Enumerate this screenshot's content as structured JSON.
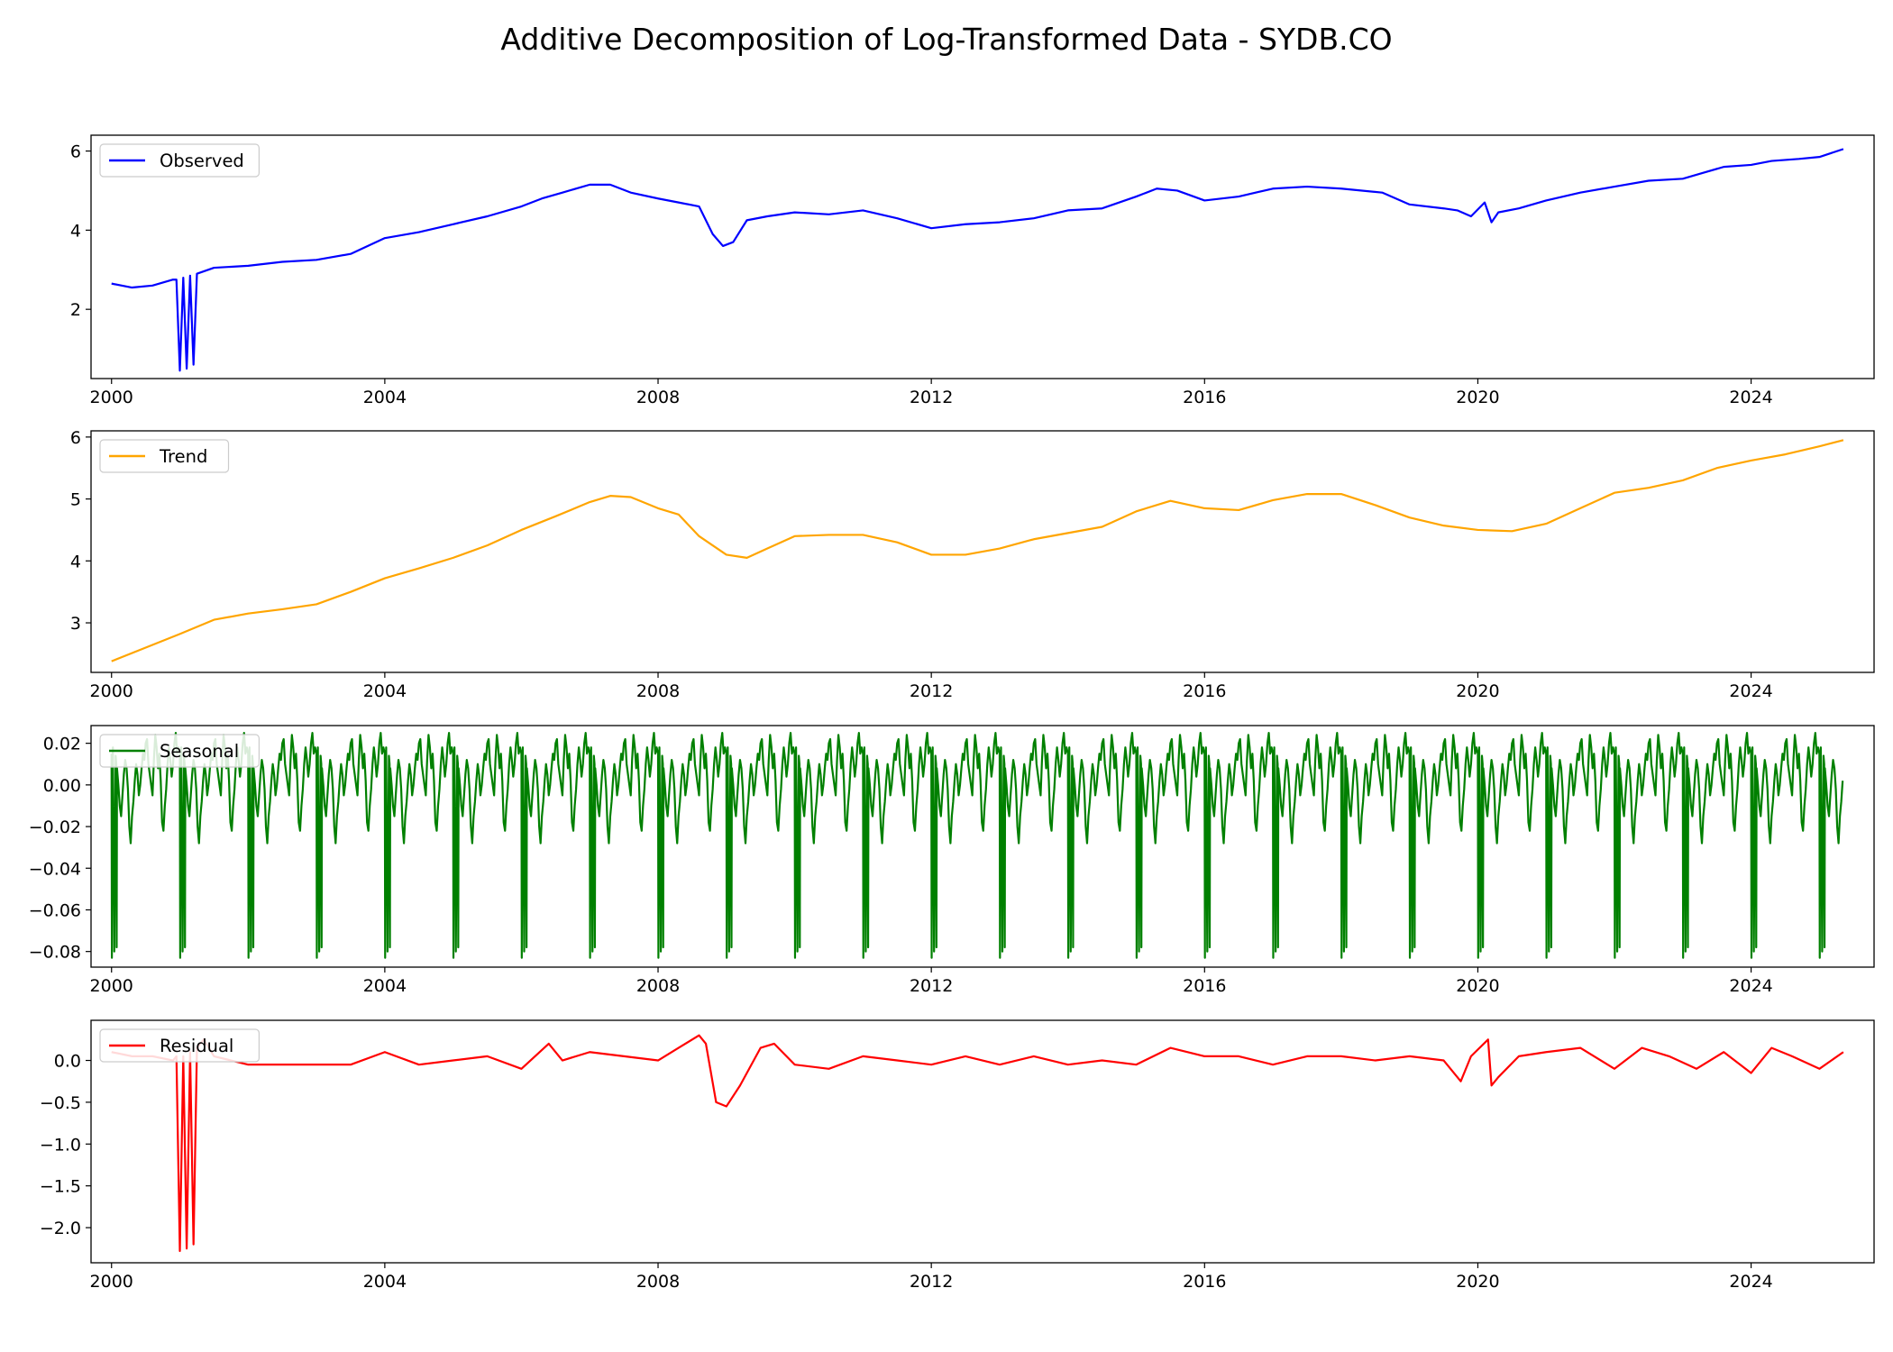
{
  "figure": {
    "title": "Additive Decomposition of Log-Transformed Data - SYDB.CO"
  },
  "chart_data": [
    {
      "type": "line",
      "legend": "Observed",
      "legend_position": "upper-left",
      "color": "#0000ff",
      "xlim": [
        1999.7,
        2025.8
      ],
      "ylim": [
        0.25,
        6.4
      ],
      "x_ticks": [
        2000,
        2004,
        2008,
        2012,
        2016,
        2020,
        2024
      ],
      "x_tick_labels": [
        "2000",
        "2004",
        "2008",
        "2012",
        "2016",
        "2020",
        "2024"
      ],
      "y_ticks": [
        2,
        4,
        6
      ],
      "y_tick_labels": [
        "2",
        "4",
        "6"
      ],
      "series": [
        {
          "name": "Observed",
          "x": [
            2000.0,
            2000.3,
            2000.6,
            2000.9,
            2000.95,
            2001.0,
            2001.05,
            2001.1,
            2001.15,
            2001.2,
            2001.25,
            2001.5,
            2002.0,
            2002.5,
            2003.0,
            2003.5,
            2004.0,
            2004.5,
            2005.0,
            2005.5,
            2006.0,
            2006.3,
            2006.6,
            2007.0,
            2007.3,
            2007.6,
            2008.0,
            2008.3,
            2008.6,
            2008.8,
            2008.95,
            2009.1,
            2009.3,
            2009.6,
            2010.0,
            2010.5,
            2011.0,
            2011.5,
            2012.0,
            2012.5,
            2013.0,
            2013.5,
            2014.0,
            2014.5,
            2015.0,
            2015.3,
            2015.6,
            2016.0,
            2016.5,
            2017.0,
            2017.5,
            2018.0,
            2018.6,
            2019.0,
            2019.5,
            2019.7,
            2019.9,
            2020.1,
            2020.2,
            2020.3,
            2020.6,
            2021.0,
            2021.5,
            2022.0,
            2022.5,
            2023.0,
            2023.3,
            2023.6,
            2024.0,
            2024.3,
            2024.7,
            2025.0,
            2025.35
          ],
          "values": [
            2.65,
            2.55,
            2.6,
            2.75,
            2.75,
            0.45,
            2.8,
            0.5,
            2.85,
            0.6,
            2.9,
            3.05,
            3.1,
            3.2,
            3.25,
            3.4,
            3.8,
            3.95,
            4.15,
            4.35,
            4.6,
            4.8,
            4.95,
            5.15,
            5.15,
            4.95,
            4.8,
            4.7,
            4.6,
            3.9,
            3.6,
            3.7,
            4.25,
            4.35,
            4.45,
            4.4,
            4.5,
            4.3,
            4.05,
            4.15,
            4.2,
            4.3,
            4.5,
            4.55,
            4.85,
            5.05,
            5.0,
            4.75,
            4.85,
            5.05,
            5.1,
            5.05,
            4.95,
            4.65,
            4.55,
            4.5,
            4.35,
            4.7,
            4.2,
            4.45,
            4.55,
            4.75,
            4.95,
            5.1,
            5.25,
            5.3,
            5.45,
            5.6,
            5.65,
            5.75,
            5.8,
            5.85,
            6.05
          ]
        }
      ]
    },
    {
      "type": "line",
      "legend": "Trend",
      "legend_position": "upper-left",
      "color": "#ffa500",
      "xlim": [
        1999.7,
        2025.8
      ],
      "ylim": [
        2.2,
        6.1
      ],
      "x_ticks": [
        2000,
        2004,
        2008,
        2012,
        2016,
        2020,
        2024
      ],
      "x_tick_labels": [
        "2000",
        "2004",
        "2008",
        "2012",
        "2016",
        "2020",
        "2024"
      ],
      "y_ticks": [
        3,
        4,
        5,
        6
      ],
      "y_tick_labels": [
        "3",
        "4",
        "5",
        "6"
      ],
      "series": [
        {
          "name": "Trend",
          "x": [
            2000.0,
            2000.5,
            2001.0,
            2001.5,
            2002.0,
            2002.5,
            2003.0,
            2003.5,
            2004.0,
            2004.5,
            2005.0,
            2005.5,
            2006.0,
            2006.5,
            2007.0,
            2007.3,
            2007.6,
            2008.0,
            2008.3,
            2008.6,
            2009.0,
            2009.3,
            2009.6,
            2010.0,
            2010.5,
            2011.0,
            2011.5,
            2012.0,
            2012.5,
            2013.0,
            2013.5,
            2014.0,
            2014.5,
            2015.0,
            2015.5,
            2016.0,
            2016.5,
            2017.0,
            2017.5,
            2018.0,
            2018.5,
            2019.0,
            2019.5,
            2020.0,
            2020.5,
            2021.0,
            2021.5,
            2022.0,
            2022.5,
            2023.0,
            2023.5,
            2024.0,
            2024.5,
            2025.0,
            2025.35
          ],
          "values": [
            2.38,
            2.6,
            2.82,
            3.05,
            3.15,
            3.22,
            3.3,
            3.5,
            3.72,
            3.88,
            4.05,
            4.25,
            4.5,
            4.72,
            4.95,
            5.05,
            5.03,
            4.85,
            4.75,
            4.4,
            4.1,
            4.05,
            4.2,
            4.4,
            4.42,
            4.42,
            4.3,
            4.1,
            4.1,
            4.2,
            4.35,
            4.45,
            4.55,
            4.8,
            4.97,
            4.85,
            4.82,
            4.98,
            5.08,
            5.08,
            4.9,
            4.7,
            4.57,
            4.5,
            4.48,
            4.6,
            4.85,
            5.1,
            5.18,
            5.3,
            5.5,
            5.62,
            5.72,
            5.85,
            5.95
          ]
        }
      ]
    },
    {
      "type": "line",
      "legend": "Seasonal",
      "legend_position": "upper-left",
      "color": "#008000",
      "xlim": [
        1999.7,
        2025.8
      ],
      "ylim": [
        -0.0875,
        0.0285
      ],
      "x_ticks": [
        2000,
        2004,
        2008,
        2012,
        2016,
        2020,
        2024
      ],
      "x_tick_labels": [
        "2000",
        "2004",
        "2008",
        "2012",
        "2016",
        "2020",
        "2024"
      ],
      "y_ticks": [
        0.02,
        0.0,
        -0.02,
        -0.04,
        -0.06,
        -0.08
      ],
      "y_tick_labels": [
        "0.02",
        "0.00",
        "−0.02",
        "−0.04",
        "−0.06",
        "−0.08"
      ],
      "period_years": 1,
      "start_year": 2000,
      "end_year": 2025.35,
      "series": [
        {
          "name": "Seasonal",
          "phase": [
            0.0,
            0.005,
            0.01,
            0.015,
            0.02,
            0.04,
            0.06,
            0.07,
            0.075,
            0.08,
            0.1,
            0.12,
            0.14,
            0.16,
            0.18,
            0.2,
            0.22,
            0.24,
            0.26,
            0.28,
            0.3,
            0.32,
            0.34,
            0.36,
            0.38,
            0.4,
            0.42,
            0.44,
            0.46,
            0.48,
            0.5,
            0.52,
            0.54,
            0.56,
            0.58,
            0.6,
            0.62,
            0.64,
            0.66,
            0.68,
            0.7,
            0.72,
            0.74,
            0.76,
            0.78,
            0.8,
            0.82,
            0.84,
            0.86,
            0.88,
            0.9,
            0.92,
            0.94,
            0.96,
            0.98
          ],
          "values": [
            0.015,
            -0.083,
            0.012,
            0.01,
            0.018,
            -0.08,
            0.014,
            0.01,
            -0.078,
            0.008,
            0.0,
            -0.01,
            -0.015,
            -0.005,
            0.005,
            0.012,
            0.008,
            -0.002,
            -0.02,
            -0.028,
            -0.015,
            -0.008,
            0.002,
            0.01,
            0.005,
            -0.005,
            0.0,
            0.008,
            0.015,
            0.012,
            0.02,
            0.022,
            0.01,
            0.005,
            0.0,
            -0.005,
            0.012,
            0.024,
            0.018,
            0.008,
            0.015,
            0.002,
            -0.018,
            -0.022,
            -0.01,
            -0.002,
            0.01,
            0.018,
            0.012,
            0.004,
            0.01,
            0.02,
            0.025,
            0.015,
            0.018
          ]
        }
      ]
    },
    {
      "type": "line",
      "legend": "Residual",
      "legend_position": "upper-left",
      "color": "#ff0000",
      "xlim": [
        1999.7,
        2025.8
      ],
      "ylim": [
        -2.42,
        0.48
      ],
      "x_ticks": [
        2000,
        2004,
        2008,
        2012,
        2016,
        2020,
        2024
      ],
      "x_tick_labels": [
        "2000",
        "2004",
        "2008",
        "2012",
        "2016",
        "2020",
        "2024"
      ],
      "y_ticks": [
        0.0,
        -0.5,
        -1.0,
        -1.5,
        -2.0
      ],
      "y_tick_labels": [
        "0.0",
        "−0.5",
        "−1.0",
        "−1.5",
        "−2.0"
      ],
      "series": [
        {
          "name": "Residual",
          "x": [
            2000.0,
            2000.3,
            2000.6,
            2000.9,
            2000.95,
            2001.0,
            2001.05,
            2001.1,
            2001.15,
            2001.2,
            2001.25,
            2001.35,
            2001.5,
            2002.0,
            2002.5,
            2003.0,
            2003.5,
            2004.0,
            2004.5,
            2005.0,
            2005.5,
            2006.0,
            2006.4,
            2006.6,
            2007.0,
            2007.5,
            2008.0,
            2008.3,
            2008.6,
            2008.7,
            2008.85,
            2009.0,
            2009.2,
            2009.5,
            2009.7,
            2010.0,
            2010.5,
            2011.0,
            2011.5,
            2012.0,
            2012.5,
            2013.0,
            2013.5,
            2014.0,
            2014.5,
            2015.0,
            2015.5,
            2016.0,
            2016.5,
            2017.0,
            2017.5,
            2018.0,
            2018.5,
            2019.0,
            2019.5,
            2019.75,
            2019.9,
            2020.15,
            2020.2,
            2020.3,
            2020.6,
            2021.0,
            2021.5,
            2022.0,
            2022.4,
            2022.8,
            2023.2,
            2023.6,
            2024.0,
            2024.3,
            2024.6,
            2025.0,
            2025.35
          ],
          "values": [
            0.1,
            0.05,
            0.05,
            0.0,
            0.05,
            -2.28,
            0.05,
            -2.25,
            0.1,
            -2.2,
            0.15,
            0.25,
            0.05,
            -0.05,
            -0.05,
            -0.05,
            -0.05,
            0.1,
            -0.05,
            0.0,
            0.05,
            -0.1,
            0.2,
            0.0,
            0.1,
            0.05,
            0.0,
            0.15,
            0.3,
            0.2,
            -0.5,
            -0.55,
            -0.3,
            0.15,
            0.2,
            -0.05,
            -0.1,
            0.05,
            0.0,
            -0.05,
            0.05,
            -0.05,
            0.05,
            -0.05,
            0.0,
            -0.05,
            0.15,
            0.05,
            0.05,
            -0.05,
            0.05,
            0.05,
            0.0,
            0.05,
            0.0,
            -0.25,
            0.05,
            0.25,
            -0.3,
            -0.2,
            0.05,
            0.1,
            0.15,
            -0.1,
            0.15,
            0.05,
            -0.1,
            0.1,
            -0.15,
            0.15,
            0.05,
            -0.1,
            0.1
          ]
        }
      ]
    }
  ]
}
